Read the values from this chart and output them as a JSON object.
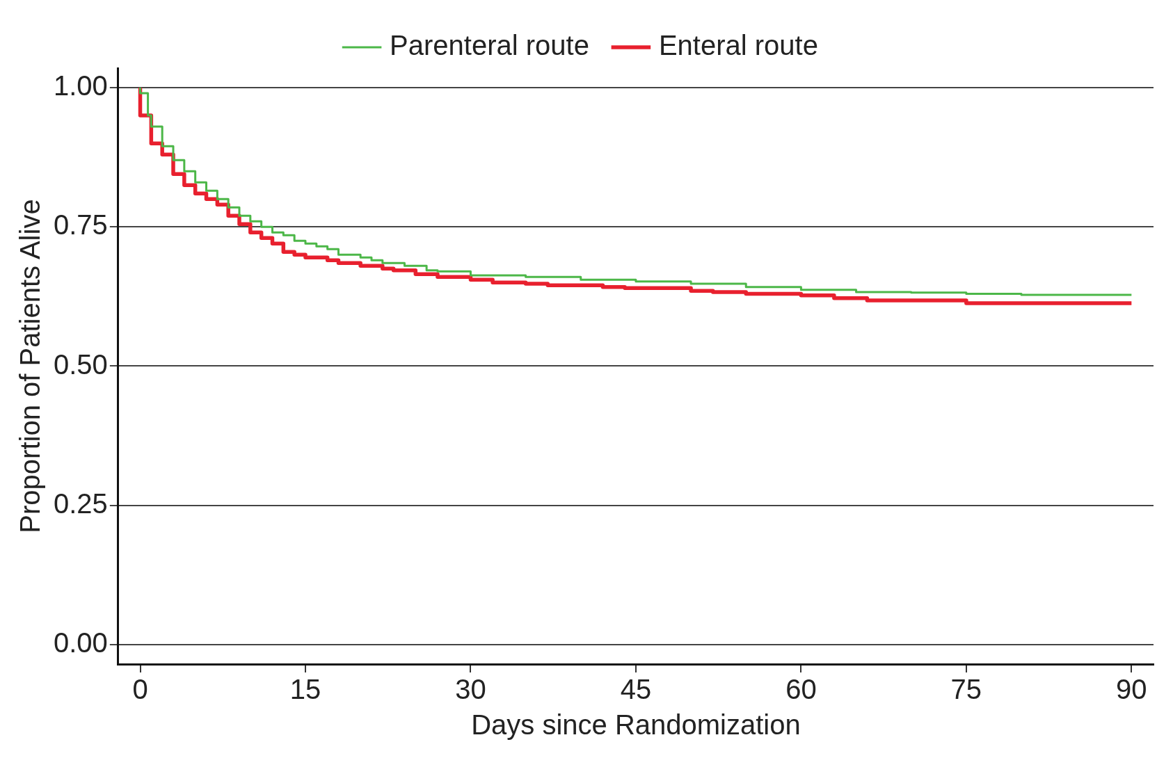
{
  "chart_data": {
    "type": "step",
    "xlabel": "Days since Randomization",
    "ylabel": "Proportion of Patients Alive",
    "xlim": [
      -2,
      92
    ],
    "ylim": [
      -0.035,
      1.035
    ],
    "xticks": [
      0,
      15,
      30,
      45,
      60,
      75,
      90
    ],
    "yticks": [
      {
        "value": 0,
        "label": "0.00"
      },
      {
        "value": 0.25,
        "label": "0.25"
      },
      {
        "value": 0.5,
        "label": "0.50"
      },
      {
        "value": 0.75,
        "label": "0.75"
      },
      {
        "value": 1,
        "label": "1.00"
      }
    ],
    "grid": "y",
    "legend": "top",
    "marker": "none",
    "line_style": "solid",
    "series": [
      {
        "name": "Parenteral route",
        "color": "#4cb748",
        "x": [
          0,
          0.7,
          1,
          2,
          3,
          4,
          5,
          6,
          7,
          8,
          9,
          10,
          11,
          12,
          13,
          14,
          15,
          16,
          17,
          18,
          20,
          21,
          22,
          24,
          26,
          27,
          30,
          35,
          40,
          45,
          50,
          55,
          60,
          65,
          70,
          75,
          80,
          84,
          90
        ],
        "values": [
          1.0,
          0.99,
          0.95,
          0.93,
          0.895,
          0.87,
          0.85,
          0.83,
          0.815,
          0.8,
          0.785,
          0.77,
          0.76,
          0.75,
          0.74,
          0.735,
          0.725,
          0.72,
          0.715,
          0.71,
          0.7,
          0.695,
          0.69,
          0.685,
          0.68,
          0.672,
          0.67,
          0.663,
          0.66,
          0.655,
          0.652,
          0.648,
          0.642,
          0.637,
          0.633,
          0.632,
          0.63,
          0.628,
          0.628
        ]
      },
      {
        "name": "Enteral route",
        "color": "#e8202e",
        "x": [
          0,
          1,
          2,
          3,
          4,
          5,
          6,
          7,
          8,
          9,
          10,
          11,
          12,
          13,
          14,
          15,
          17,
          18,
          20,
          22,
          23,
          25,
          27,
          30,
          32,
          35,
          37,
          42,
          44,
          50,
          52,
          55,
          60,
          63,
          66,
          75,
          80,
          90
        ],
        "values": [
          1.0,
          0.95,
          0.9,
          0.88,
          0.845,
          0.825,
          0.81,
          0.8,
          0.79,
          0.77,
          0.755,
          0.74,
          0.73,
          0.72,
          0.705,
          0.7,
          0.695,
          0.69,
          0.685,
          0.68,
          0.675,
          0.672,
          0.665,
          0.66,
          0.655,
          0.65,
          0.648,
          0.645,
          0.642,
          0.64,
          0.635,
          0.633,
          0.63,
          0.627,
          0.622,
          0.618,
          0.613,
          0.613
        ]
      }
    ]
  }
}
